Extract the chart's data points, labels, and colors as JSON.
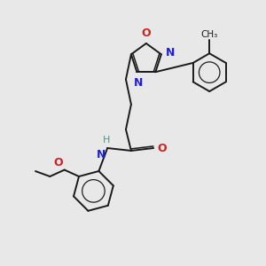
{
  "bg_color": "#e8e8e8",
  "bond_color": "#1a1a1a",
  "N_color": "#2222cc",
  "O_color": "#cc2222",
  "H_color": "#4a9a8a",
  "figsize": [
    3.0,
    3.0
  ],
  "dpi": 100,
  "lw": 1.4,
  "lw2": 1.1,
  "xlim": [
    0,
    10
  ],
  "ylim": [
    0,
    10
  ]
}
